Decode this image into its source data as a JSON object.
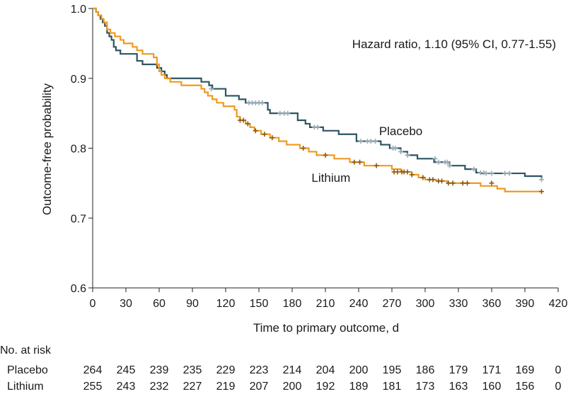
{
  "chart_data": {
    "type": "line",
    "subtype": "kaplan-meier",
    "xlabel": "Time to primary outcome, d",
    "ylabel": "Outcome-free probability",
    "xlim": [
      0,
      420
    ],
    "ylim": [
      0.6,
      1.0
    ],
    "xticks": [
      "0",
      "30",
      "60",
      "90",
      "120",
      "150",
      "180",
      "210",
      "240",
      "270",
      "300",
      "330",
      "360",
      "390",
      "420"
    ],
    "yticks": [
      "0.6",
      "0.7",
      "0.8",
      "0.9",
      "1.0"
    ],
    "annotation": "Hazard ratio, 1.10 (95% CI, 0.77-1.55)",
    "grid": false,
    "series": [
      {
        "name": "Placebo",
        "color": "#2d5462",
        "censor_color": "#9aaeb6",
        "steps": [
          [
            0,
            1.0
          ],
          [
            3,
            0.995
          ],
          [
            5,
            0.99
          ],
          [
            7,
            0.985
          ],
          [
            9,
            0.98
          ],
          [
            11,
            0.975
          ],
          [
            13,
            0.965
          ],
          [
            15,
            0.96
          ],
          [
            17,
            0.955
          ],
          [
            19,
            0.945
          ],
          [
            21,
            0.94
          ],
          [
            25,
            0.935
          ],
          [
            40,
            0.925
          ],
          [
            45,
            0.92
          ],
          [
            58,
            0.915
          ],
          [
            62,
            0.91
          ],
          [
            65,
            0.905
          ],
          [
            67,
            0.9
          ],
          [
            98,
            0.895
          ],
          [
            105,
            0.89
          ],
          [
            108,
            0.885
          ],
          [
            120,
            0.875
          ],
          [
            132,
            0.87
          ],
          [
            138,
            0.865
          ],
          [
            158,
            0.855
          ],
          [
            160,
            0.85
          ],
          [
            185,
            0.84
          ],
          [
            192,
            0.835
          ],
          [
            196,
            0.83
          ],
          [
            208,
            0.825
          ],
          [
            222,
            0.82
          ],
          [
            238,
            0.81
          ],
          [
            260,
            0.805
          ],
          [
            268,
            0.8
          ],
          [
            278,
            0.795
          ],
          [
            284,
            0.79
          ],
          [
            293,
            0.785
          ],
          [
            308,
            0.78
          ],
          [
            322,
            0.775
          ],
          [
            336,
            0.77
          ],
          [
            346,
            0.765
          ],
          [
            350,
            0.764
          ],
          [
            390,
            0.76
          ],
          [
            405,
            0.755
          ]
        ],
        "censored": [
          [
            107,
            0.885
          ],
          [
            141,
            0.865
          ],
          [
            144,
            0.865
          ],
          [
            147,
            0.865
          ],
          [
            150,
            0.865
          ],
          [
            153,
            0.865
          ],
          [
            169,
            0.85
          ],
          [
            173,
            0.85
          ],
          [
            176,
            0.85
          ],
          [
            200,
            0.83
          ],
          [
            203,
            0.83
          ],
          [
            242,
            0.81
          ],
          [
            248,
            0.81
          ],
          [
            251,
            0.81
          ],
          [
            255,
            0.81
          ],
          [
            271,
            0.8
          ],
          [
            273,
            0.8
          ],
          [
            278,
            0.795
          ],
          [
            284,
            0.79
          ],
          [
            309,
            0.785
          ],
          [
            312,
            0.78
          ],
          [
            318,
            0.78
          ],
          [
            320,
            0.78
          ],
          [
            322,
            0.775
          ],
          [
            344,
            0.77
          ],
          [
            350,
            0.765
          ],
          [
            353,
            0.765
          ],
          [
            355,
            0.764
          ],
          [
            360,
            0.764
          ],
          [
            372,
            0.764
          ],
          [
            376,
            0.764
          ],
          [
            405,
            0.755
          ]
        ]
      },
      {
        "name": "Lithium",
        "color": "#ef9a1e",
        "censor_color": "#8a5a12",
        "steps": [
          [
            0,
            1.0
          ],
          [
            3,
            0.995
          ],
          [
            5,
            0.99
          ],
          [
            8,
            0.985
          ],
          [
            10,
            0.98
          ],
          [
            13,
            0.97
          ],
          [
            16,
            0.965
          ],
          [
            20,
            0.96
          ],
          [
            25,
            0.955
          ],
          [
            28,
            0.95
          ],
          [
            36,
            0.945
          ],
          [
            40,
            0.94
          ],
          [
            45,
            0.935
          ],
          [
            55,
            0.93
          ],
          [
            58,
            0.92
          ],
          [
            60,
            0.91
          ],
          [
            62,
            0.905
          ],
          [
            65,
            0.9
          ],
          [
            70,
            0.895
          ],
          [
            80,
            0.89
          ],
          [
            98,
            0.885
          ],
          [
            101,
            0.88
          ],
          [
            104,
            0.875
          ],
          [
            108,
            0.87
          ],
          [
            112,
            0.865
          ],
          [
            118,
            0.86
          ],
          [
            128,
            0.855
          ],
          [
            130,
            0.845
          ],
          [
            133,
            0.84
          ],
          [
            138,
            0.835
          ],
          [
            142,
            0.83
          ],
          [
            146,
            0.825
          ],
          [
            152,
            0.82
          ],
          [
            160,
            0.815
          ],
          [
            168,
            0.81
          ],
          [
            175,
            0.805
          ],
          [
            187,
            0.8
          ],
          [
            195,
            0.795
          ],
          [
            202,
            0.79
          ],
          [
            218,
            0.785
          ],
          [
            232,
            0.78
          ],
          [
            245,
            0.775
          ],
          [
            270,
            0.77
          ],
          [
            278,
            0.766
          ],
          [
            288,
            0.762
          ],
          [
            294,
            0.758
          ],
          [
            300,
            0.755
          ],
          [
            310,
            0.753
          ],
          [
            320,
            0.75
          ],
          [
            350,
            0.746
          ],
          [
            365,
            0.742
          ],
          [
            372,
            0.738
          ]
        ],
        "censored": [
          [
            133,
            0.84
          ],
          [
            136,
            0.84
          ],
          [
            140,
            0.835
          ],
          [
            147,
            0.825
          ],
          [
            155,
            0.82
          ],
          [
            162,
            0.815
          ],
          [
            190,
            0.8
          ],
          [
            210,
            0.79
          ],
          [
            236,
            0.78
          ],
          [
            241,
            0.78
          ],
          [
            256,
            0.775
          ],
          [
            272,
            0.766
          ],
          [
            275,
            0.766
          ],
          [
            279,
            0.766
          ],
          [
            281,
            0.766
          ],
          [
            284,
            0.766
          ],
          [
            288,
            0.762
          ],
          [
            298,
            0.758
          ],
          [
            304,
            0.755
          ],
          [
            307,
            0.755
          ],
          [
            312,
            0.753
          ],
          [
            315,
            0.753
          ],
          [
            321,
            0.75
          ],
          [
            325,
            0.75
          ],
          [
            334,
            0.75
          ],
          [
            338,
            0.75
          ],
          [
            360,
            0.75
          ],
          [
            405,
            0.738
          ]
        ]
      }
    ],
    "risk_table": {
      "title": "No. at risk",
      "times": [
        0,
        30,
        60,
        90,
        120,
        150,
        180,
        210,
        240,
        270,
        300,
        330,
        360,
        390,
        420
      ],
      "rows": [
        {
          "label": "Placebo",
          "counts": [
            "264",
            "245",
            "239",
            "235",
            "229",
            "223",
            "214",
            "204",
            "200",
            "195",
            "186",
            "179",
            "171",
            "169",
            "0"
          ]
        },
        {
          "label": "Lithium",
          "counts": [
            "255",
            "243",
            "232",
            "227",
            "219",
            "207",
            "200",
            "192",
            "189",
            "181",
            "173",
            "163",
            "160",
            "156",
            "0"
          ]
        }
      ]
    },
    "series_labels": [
      {
        "text": "Placebo",
        "at": [
          278,
          0.825
        ],
        "anchor": "middle"
      },
      {
        "text": "Lithium",
        "at": [
          215,
          0.758
        ],
        "anchor": "middle"
      }
    ]
  }
}
